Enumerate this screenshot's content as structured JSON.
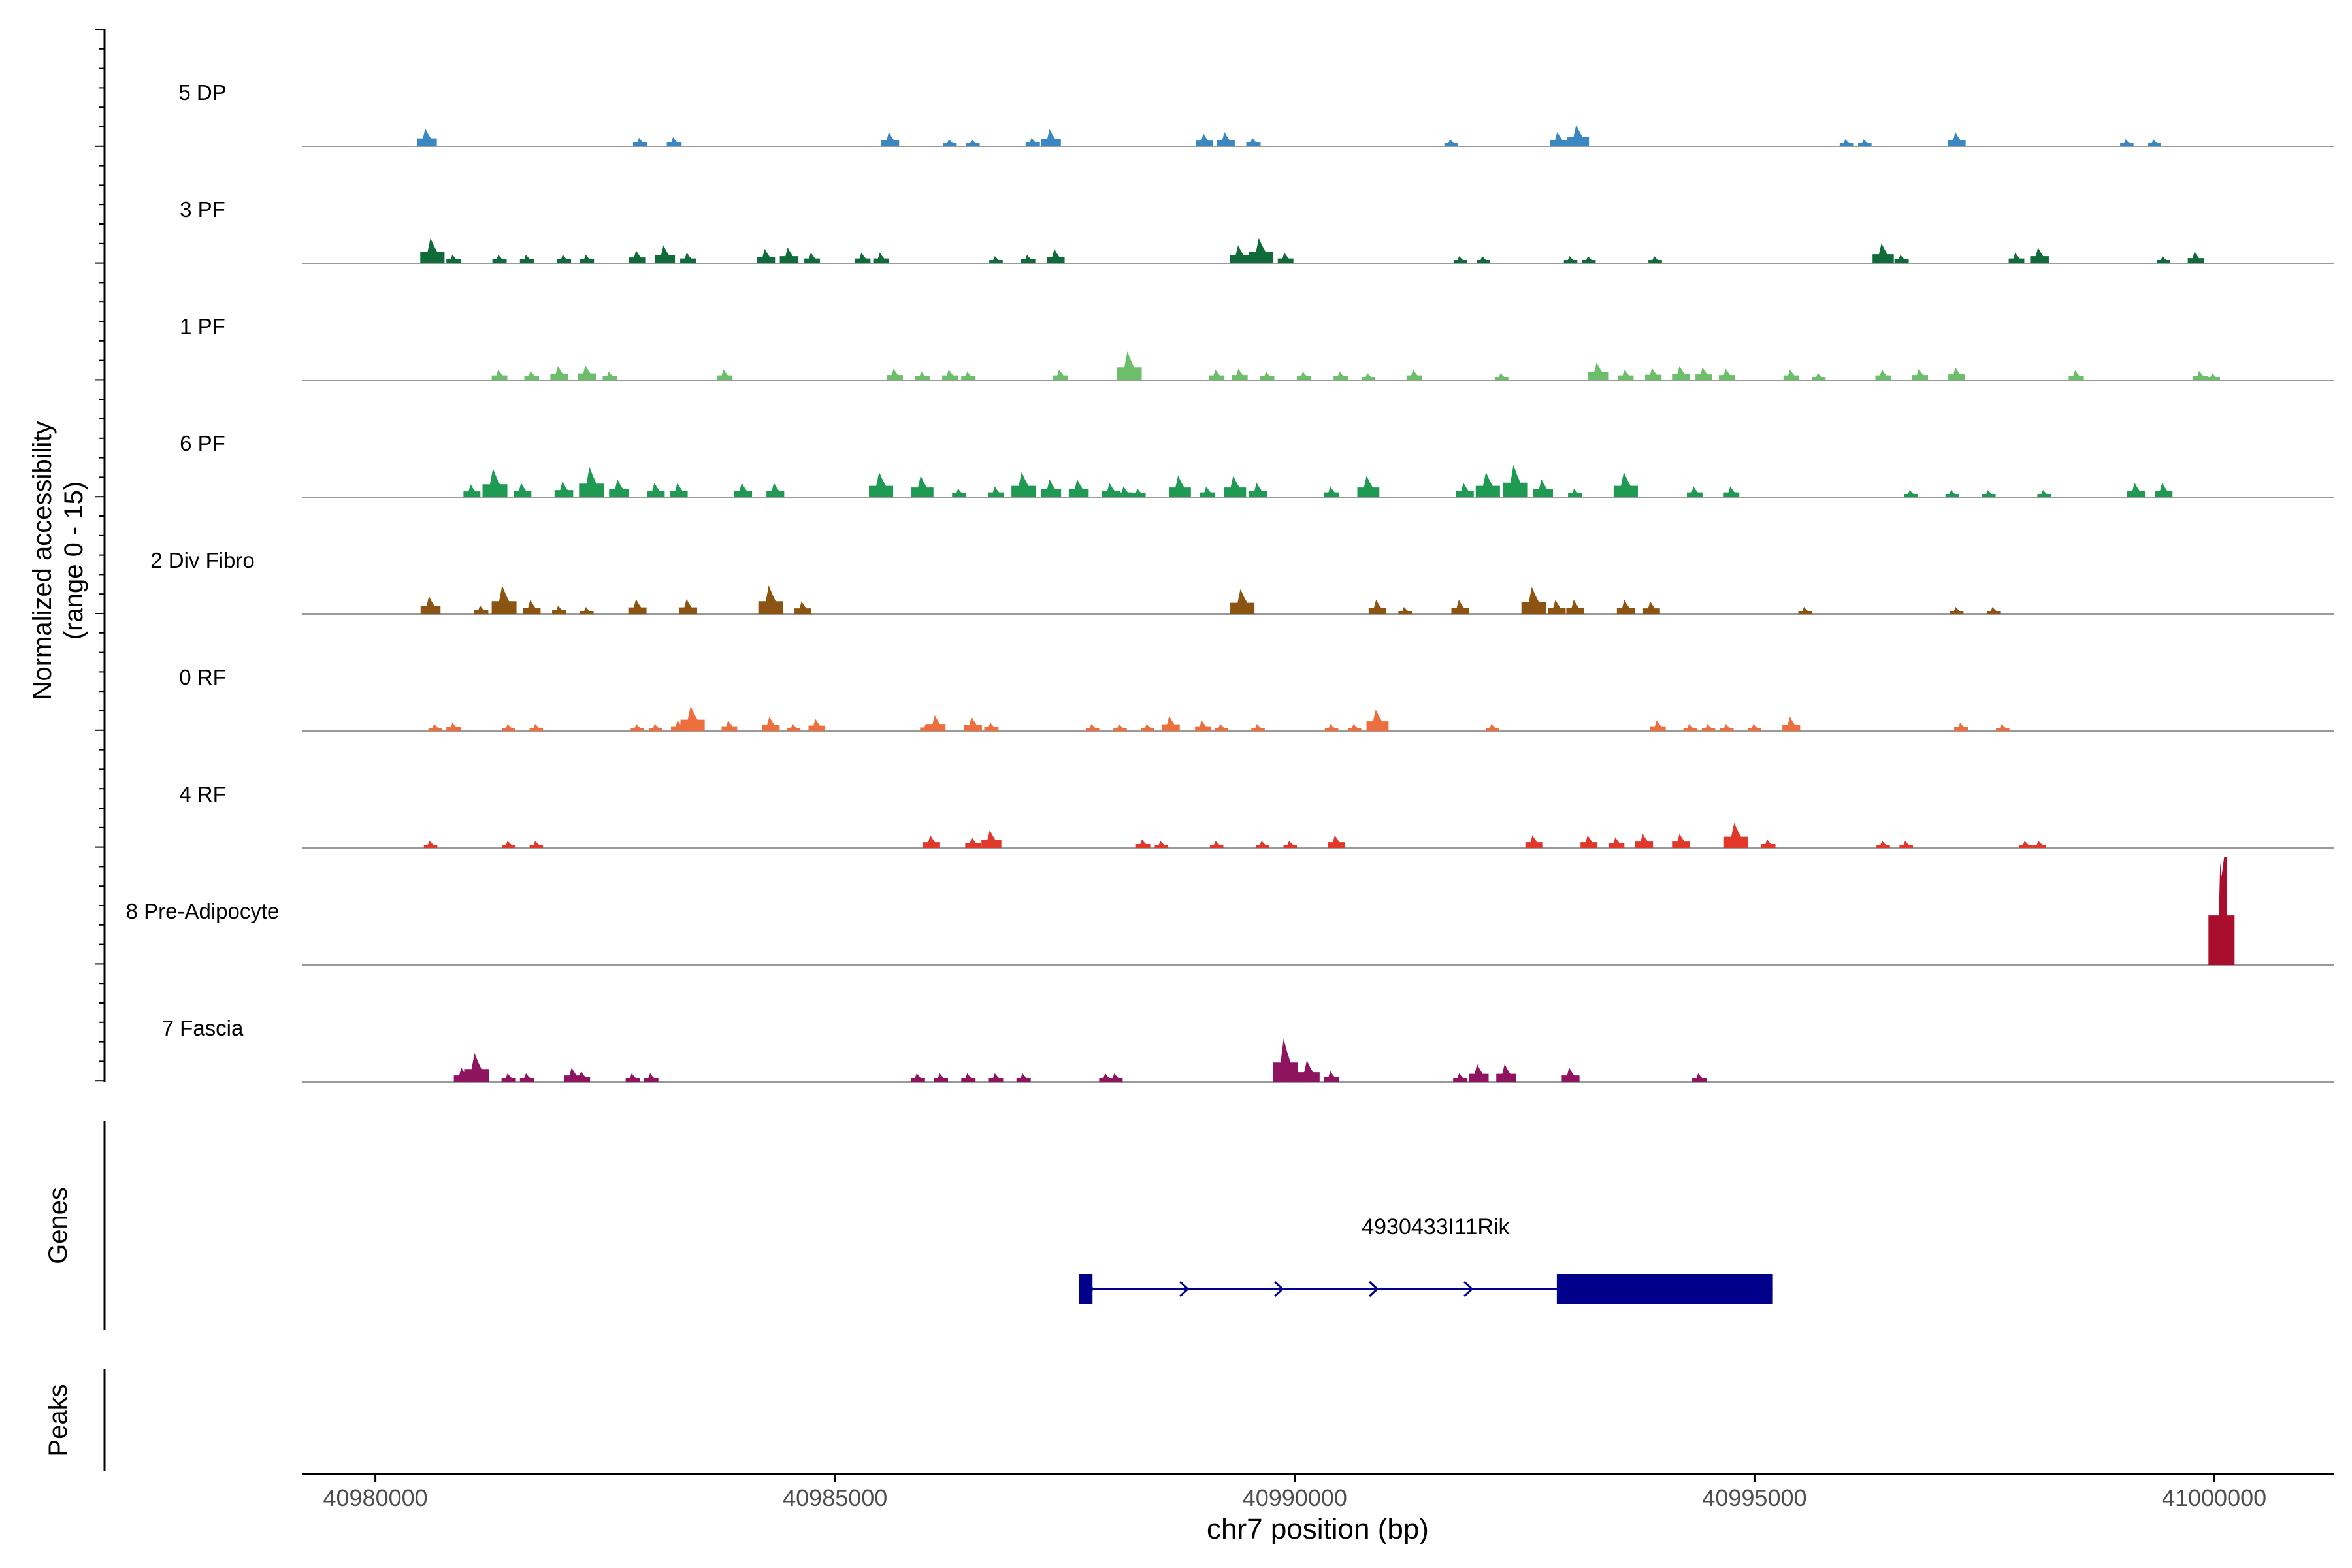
{
  "chart_data": {
    "type": "area",
    "title": "",
    "xlabel": "chr7 position (bp)",
    "ylabel_line1": "Normalized accessibility",
    "ylabel_line2": "(range 0 - 15)",
    "ylim": [
      0,
      15
    ],
    "xlim": [
      40979200,
      41001300
    ],
    "x_ticks": [
      40980000,
      40985000,
      40990000,
      40995000,
      41000000
    ],
    "x_tick_labels": [
      "40980000",
      "40985000",
      "40990000",
      "40995000",
      "41000000"
    ],
    "panel_labels": {
      "genes": "Genes",
      "peaks": "Peaks"
    },
    "tracks": [
      {
        "name": "5 DP",
        "color": "#3A87C1",
        "peaks": [
          [
            40980560,
            2.5
          ],
          [
            40982880,
            1.2
          ],
          [
            40983250,
            1.3
          ],
          [
            40985600,
            2
          ],
          [
            40986250,
            1
          ],
          [
            40986500,
            1
          ],
          [
            40987150,
            1.2
          ],
          [
            40987350,
            2.4
          ],
          [
            40989020,
            1.8
          ],
          [
            40989250,
            2
          ],
          [
            40989550,
            1.2
          ],
          [
            40991700,
            1
          ],
          [
            40992870,
            2
          ],
          [
            40993080,
            3
          ],
          [
            40996000,
            1
          ],
          [
            40996200,
            1
          ],
          [
            40997200,
            2
          ],
          [
            40999050,
            1
          ],
          [
            40999350,
            1
          ]
        ]
      },
      {
        "name": "3 PF",
        "color": "#0F6B3A",
        "peaks": [
          [
            40980620,
            3.5
          ],
          [
            40980850,
            1.2
          ],
          [
            40981350,
            1.2
          ],
          [
            40981650,
            1.2
          ],
          [
            40982050,
            1.2
          ],
          [
            40982300,
            1.2
          ],
          [
            40982850,
            1.8
          ],
          [
            40983150,
            2.5
          ],
          [
            40983400,
            1.5
          ],
          [
            40984250,
            2
          ],
          [
            40984500,
            2.2
          ],
          [
            40984750,
            1.5
          ],
          [
            40985300,
            1.5
          ],
          [
            40985500,
            1.5
          ],
          [
            40986750,
            1
          ],
          [
            40987100,
            1.2
          ],
          [
            40987400,
            2
          ],
          [
            40989400,
            2.5
          ],
          [
            40989630,
            3.5
          ],
          [
            40989900,
            1.5
          ],
          [
            40991800,
            1
          ],
          [
            40992050,
            1
          ],
          [
            40993000,
            1
          ],
          [
            40993200,
            1
          ],
          [
            40993920,
            1
          ],
          [
            40996400,
            2.8
          ],
          [
            40996600,
            1.2
          ],
          [
            40997850,
            1.5
          ],
          [
            40998100,
            2.2
          ],
          [
            40999450,
            1
          ],
          [
            40999800,
            1.6
          ]
        ]
      },
      {
        "name": "1 PF",
        "color": "#6DBE6B",
        "peaks": [
          [
            40981350,
            1.5
          ],
          [
            40981700,
            1.3
          ],
          [
            40982000,
            2
          ],
          [
            40982300,
            2.1
          ],
          [
            40982550,
            1.2
          ],
          [
            40983800,
            1.5
          ],
          [
            40985650,
            1.6
          ],
          [
            40985950,
            1.2
          ],
          [
            40986250,
            1.5
          ],
          [
            40986450,
            1.2
          ],
          [
            40987450,
            1.5
          ],
          [
            40988200,
            4
          ],
          [
            40989150,
            1.5
          ],
          [
            40989400,
            1.6
          ],
          [
            40989700,
            1.2
          ],
          [
            40990100,
            1.2
          ],
          [
            40990500,
            1.2
          ],
          [
            40990800,
            1
          ],
          [
            40991300,
            1.5
          ],
          [
            40992250,
            1
          ],
          [
            40993300,
            2.5
          ],
          [
            40993600,
            1.5
          ],
          [
            40993900,
            1.7
          ],
          [
            40994200,
            2
          ],
          [
            40994450,
            1.8
          ],
          [
            40994700,
            1.6
          ],
          [
            40995400,
            1.5
          ],
          [
            40995700,
            1
          ],
          [
            40996400,
            1.5
          ],
          [
            40996800,
            1.6
          ],
          [
            40997200,
            1.8
          ],
          [
            40998500,
            1.4
          ],
          [
            40999850,
            1.3
          ],
          [
            40999990,
            1
          ]
        ]
      },
      {
        "name": "6 PF",
        "color": "#1E9A52",
        "peaks": [
          [
            40981050,
            1.8
          ],
          [
            40981300,
            4
          ],
          [
            40981600,
            2
          ],
          [
            40982050,
            2.2
          ],
          [
            40982350,
            4.2
          ],
          [
            40982650,
            2.5
          ],
          [
            40983050,
            2
          ],
          [
            40983300,
            2
          ],
          [
            40984000,
            2
          ],
          [
            40984350,
            2
          ],
          [
            40985500,
            3.5
          ],
          [
            40985950,
            3
          ],
          [
            40986350,
            1.2
          ],
          [
            40986750,
            1.5
          ],
          [
            40987050,
            3.5
          ],
          [
            40987350,
            2.5
          ],
          [
            40987650,
            2.5
          ],
          [
            40988000,
            2
          ],
          [
            40988150,
            1.5
          ],
          [
            40988300,
            1.2
          ],
          [
            40988750,
            3
          ],
          [
            40989050,
            1.5
          ],
          [
            40989350,
            3
          ],
          [
            40989600,
            2
          ],
          [
            40990400,
            1.5
          ],
          [
            40990800,
            3
          ],
          [
            40991850,
            2
          ],
          [
            40992100,
            3.5
          ],
          [
            40992400,
            4.5
          ],
          [
            40992700,
            2.5
          ],
          [
            40993050,
            1.2
          ],
          [
            40993600,
            3.5
          ],
          [
            40994350,
            1.5
          ],
          [
            40994750,
            1.5
          ],
          [
            40996700,
            1
          ],
          [
            40997150,
            1
          ],
          [
            40997550,
            1
          ],
          [
            40998150,
            1
          ],
          [
            40999150,
            2
          ],
          [
            40999450,
            2
          ]
        ]
      },
      {
        "name": "2 Div Fibro",
        "color": "#8C5412",
        "peaks": [
          [
            40980600,
            2.5
          ],
          [
            40981150,
            1.2
          ],
          [
            40981400,
            4
          ],
          [
            40981700,
            2
          ],
          [
            40982000,
            1.2
          ],
          [
            40982300,
            1
          ],
          [
            40982850,
            2.1
          ],
          [
            40983400,
            2.1
          ],
          [
            40984300,
            4
          ],
          [
            40984650,
            1.8
          ],
          [
            40989430,
            3.5
          ],
          [
            40990900,
            2
          ],
          [
            40991200,
            1
          ],
          [
            40991800,
            2
          ],
          [
            40992600,
            3.8
          ],
          [
            40992850,
            2
          ],
          [
            40993050,
            2
          ],
          [
            40993600,
            2
          ],
          [
            40993880,
            1.8
          ],
          [
            40995550,
            1
          ],
          [
            40997200,
            1
          ],
          [
            40997600,
            1
          ]
        ]
      },
      {
        "name": "0 RF",
        "color": "#EE6F3E",
        "peaks": [
          [
            40980650,
            1
          ],
          [
            40980850,
            1.2
          ],
          [
            40981450,
            1
          ],
          [
            40981750,
            1
          ],
          [
            40982850,
            1
          ],
          [
            40983050,
            1
          ],
          [
            40983300,
            1.5
          ],
          [
            40983450,
            3.5
          ],
          [
            40983850,
            1.5
          ],
          [
            40984300,
            2
          ],
          [
            40984550,
            1
          ],
          [
            40984800,
            1.7
          ],
          [
            40986000,
            1.1
          ],
          [
            40986100,
            2.2
          ],
          [
            40986500,
            2
          ],
          [
            40986700,
            1.2
          ],
          [
            40987800,
            1
          ],
          [
            40988100,
            1
          ],
          [
            40988400,
            1
          ],
          [
            40988650,
            2.1
          ],
          [
            40989000,
            1.5
          ],
          [
            40989200,
            1
          ],
          [
            40989600,
            1
          ],
          [
            40990400,
            1
          ],
          [
            40990650,
            1
          ],
          [
            40990900,
            3
          ],
          [
            40992150,
            1
          ],
          [
            40993950,
            1.5
          ],
          [
            40994300,
            1
          ],
          [
            40994500,
            1
          ],
          [
            40994700,
            1
          ],
          [
            40995000,
            1
          ],
          [
            40995400,
            2
          ],
          [
            40997250,
            1.2
          ],
          [
            40997700,
            1
          ]
        ]
      },
      {
        "name": "4 RF",
        "color": "#E0382B",
        "peaks": [
          [
            40980600,
            1
          ],
          [
            40981450,
            1
          ],
          [
            40981750,
            1
          ],
          [
            40986050,
            1.8
          ],
          [
            40986500,
            1.5
          ],
          [
            40986700,
            2.5
          ],
          [
            40988350,
            1.2
          ],
          [
            40988550,
            1
          ],
          [
            40989150,
            1
          ],
          [
            40989650,
            1
          ],
          [
            40989950,
            1
          ],
          [
            40990450,
            1
          ],
          [
            40990450,
            1.8
          ],
          [
            40992600,
            1.8
          ],
          [
            40993200,
            1.8
          ],
          [
            40993500,
            1.5
          ],
          [
            40993800,
            2
          ],
          [
            40994200,
            2
          ],
          [
            40994800,
            3.5
          ],
          [
            40995150,
            1.2
          ],
          [
            40996400,
            1
          ],
          [
            40996650,
            1
          ],
          [
            40997950,
            1
          ],
          [
            40998100,
            1
          ]
        ]
      },
      {
        "name": "8 Pre-Adipocyte",
        "color": "#A90E2C",
        "peaks": [
          [
            41000080,
            15
          ]
        ]
      },
      {
        "name": "7 Fascia",
        "color": "#8E1460",
        "peaks": [
          [
            40980950,
            2
          ],
          [
            40981100,
            4
          ],
          [
            40981450,
            1.2
          ],
          [
            40981650,
            1.2
          ],
          [
            40982150,
            2
          ],
          [
            40982250,
            1.5
          ],
          [
            40982800,
            1.2
          ],
          [
            40983000,
            1.2
          ],
          [
            40985900,
            1.2
          ],
          [
            40986150,
            1.2
          ],
          [
            40986450,
            1.2
          ],
          [
            40986750,
            1.2
          ],
          [
            40987050,
            1.2
          ],
          [
            40987950,
            1.2
          ],
          [
            40988050,
            1.2
          ],
          [
            40989900,
            6
          ],
          [
            40990150,
            3
          ],
          [
            40990400,
            1.5
          ],
          [
            40991800,
            1.2
          ],
          [
            40992000,
            2.5
          ],
          [
            40992300,
            2.5
          ],
          [
            40993000,
            2
          ],
          [
            40994400,
            1.2
          ]
        ]
      }
    ],
    "genes": [
      {
        "name": "4930433I11Rik",
        "strand": "+",
        "start": 40987650,
        "end": 40995200,
        "exons": [
          [
            40987650,
            40987800
          ],
          [
            40992850,
            40995200
          ]
        ]
      }
    ],
    "peaks_track": []
  }
}
